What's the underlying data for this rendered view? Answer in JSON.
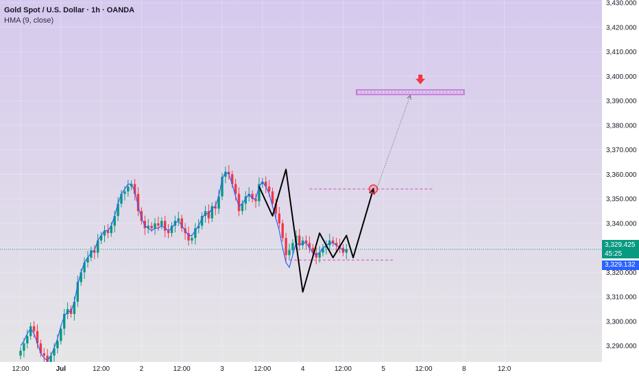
{
  "legend": {
    "title": "Gold Spot / U.S. Dollar · 1h · OANDA",
    "indicator": "HMA (9, close)"
  },
  "price_tags": {
    "last_price": "3,329.425",
    "countdown": "45:25",
    "hma_value": "3,329.132"
  },
  "colors": {
    "bull": "#089981",
    "bear": "#f23645",
    "hma": "#2962ff",
    "bg_top": "#d6c9ee",
    "bg_bottom": "#e6e6e6",
    "zone": "#c678dd",
    "arrow": "#f23645",
    "pattern": "#000000",
    "dashed": "#d24fb4"
  },
  "chart_data": {
    "type": "candlestick",
    "symbol": "Gold Spot / U.S. Dollar",
    "interval": "1h",
    "broker": "OANDA",
    "indicator": "HMA (9, close)",
    "ylim": [
      3285,
      3430
    ],
    "y_ticks": [
      3290,
      3300,
      3310,
      3320,
      3330,
      3340,
      3350,
      3360,
      3370,
      3380,
      3390,
      3400,
      3410,
      3420,
      3430
    ],
    "y_tick_labels": [
      "3,290.000",
      "3,300.000",
      "3,310.000",
      "3,320.000",
      "3,330.000",
      "3,340.000",
      "3,350.000",
      "3,360.000",
      "3,370.000",
      "3,380.000",
      "3,390.000",
      "3,400.000",
      "3,410.000",
      "3,420.000",
      "3,430.000"
    ],
    "x_ticks": [
      {
        "label": "12:00",
        "bar": 0
      },
      {
        "label": "Jul",
        "bar": 12
      },
      {
        "label": "12:00",
        "bar": 24
      },
      {
        "label": "2",
        "bar": 36
      },
      {
        "label": "12:00",
        "bar": 48
      },
      {
        "label": "3",
        "bar": 60
      },
      {
        "label": "12:00",
        "bar": 72
      },
      {
        "label": "4",
        "bar": 84
      },
      {
        "label": "12:00",
        "bar": 96
      },
      {
        "label": "5",
        "bar": 108
      },
      {
        "label": "12:00",
        "bar": 120
      },
      {
        "label": "8",
        "bar": 132
      },
      {
        "label": "12:0",
        "bar": 144
      }
    ],
    "closes": [
      3288,
      3291,
      3294,
      3298,
      3296,
      3291,
      3287,
      3286,
      3283,
      3286,
      3289,
      3292,
      3297,
      3303,
      3305,
      3303,
      3308,
      3316,
      3320,
      3324,
      3326,
      3329,
      3328,
      3333,
      3335,
      3337,
      3336,
      3339,
      3343,
      3348,
      3352,
      3353,
      3355,
      3356,
      3352,
      3345,
      3341,
      3338,
      3339,
      3338,
      3340,
      3339,
      3341,
      3337,
      3336,
      3339,
      3341,
      3342,
      3338,
      3336,
      3333,
      3334,
      3338,
      3339,
      3343,
      3345,
      3342,
      3347,
      3346,
      3351,
      3359,
      3361,
      3360,
      3356,
      3352,
      3345,
      3348,
      3351,
      3352,
      3350,
      3349,
      3356,
      3357,
      3355,
      3353,
      3348,
      3344,
      3340,
      3334,
      3327,
      3329,
      3332,
      3335,
      3331,
      3333,
      3332,
      3330,
      3328,
      3326,
      3328,
      3330,
      3331,
      3333,
      3332,
      3331,
      3330,
      3328,
      3329.425
    ],
    "hma": [
      3290,
      3292,
      3295,
      3297,
      3295,
      3291,
      3287,
      3285,
      3284,
      3286,
      3289,
      3293,
      3298,
      3302,
      3304,
      3304,
      3308,
      3315,
      3320,
      3324,
      3326,
      3328,
      3329,
      3333,
      3335,
      3337,
      3337,
      3339,
      3343,
      3348,
      3352,
      3354,
      3356,
      3356,
      3353,
      3347,
      3342,
      3339,
      3338,
      3337,
      3338,
      3338,
      3339,
      3338,
      3337,
      3338,
      3340,
      3341,
      3339,
      3337,
      3335,
      3335,
      3337,
      3339,
      3342,
      3344,
      3344,
      3346,
      3347,
      3351,
      3358,
      3361,
      3360,
      3356,
      3351,
      3347,
      3348,
      3350,
      3352,
      3350,
      3350,
      3355,
      3357,
      3355,
      3352,
      3347,
      3342,
      3337,
      3330,
      3324,
      3322,
      3327,
      3332,
      3331,
      3332,
      3332,
      3330,
      3328,
      3327,
      3328,
      3330,
      3331,
      3332,
      3332,
      3331,
      3330,
      3329,
      3329.132
    ],
    "horizontal_line": 3329.425,
    "annotations": {
      "target_zone": {
        "y": [
          3393,
          3394
        ],
        "x_bars": [
          100,
          132
        ]
      },
      "resistance_line": {
        "y": 3354,
        "x_bars": [
          86,
          123
        ]
      },
      "support_line": {
        "y": 3325,
        "x_bars": [
          80,
          111
        ]
      },
      "pattern_path": [
        [
          71,
          3355
        ],
        [
          75,
          3343
        ],
        [
          79,
          3362
        ],
        [
          84,
          3312
        ],
        [
          89,
          3336
        ],
        [
          93,
          3326
        ],
        [
          97,
          3335
        ],
        [
          99,
          3326
        ],
        [
          105,
          3354
        ]
      ],
      "circle": {
        "x_bar": 105,
        "y": 3354
      },
      "projection": {
        "from": [
          106,
          3354
        ],
        "to": [
          116,
          3393
        ]
      },
      "down_arrow": {
        "x_bar": 119,
        "y": 3399
      }
    }
  }
}
